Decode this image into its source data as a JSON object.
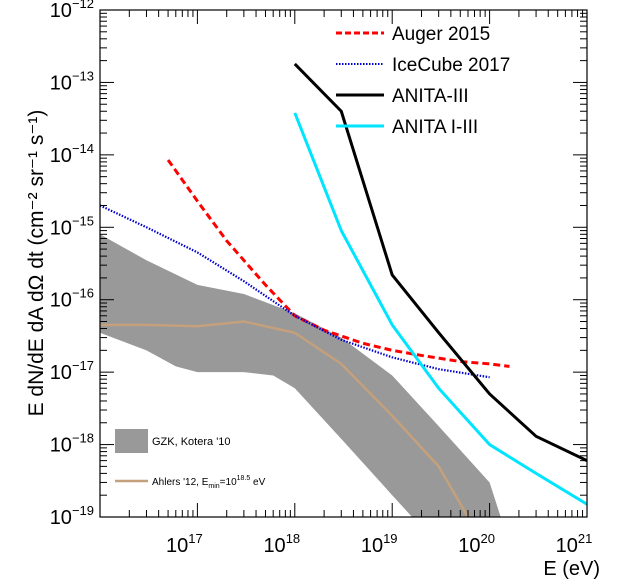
{
  "chart_data": {
    "type": "line",
    "title": "",
    "xlabel": "E (eV)",
    "ylabel": "E dN/dE dA dΩ dt (cm⁻² sr⁻¹ s⁻¹)",
    "x_scale": "log",
    "y_scale": "log",
    "xlim": [
      1e+16,
      1e+21
    ],
    "ylim": [
      1e-19,
      1e-12
    ],
    "x_tick_labels": [
      {
        "base": "10",
        "exp": "17",
        "value": 1e+17
      },
      {
        "base": "10",
        "exp": "18",
        "value": 1e+18
      },
      {
        "base": "10",
        "exp": "19",
        "value": 1e+19
      },
      {
        "base": "10",
        "exp": "20",
        "value": 1e+20
      },
      {
        "base": "10",
        "exp": "21",
        "value": 1e+21
      }
    ],
    "y_tick_labels": [
      {
        "base": "10",
        "exp": "−19",
        "value": 1e-19
      },
      {
        "base": "10",
        "exp": "−18",
        "value": 1e-18
      },
      {
        "base": "10",
        "exp": "−17",
        "value": 1e-17
      },
      {
        "base": "10",
        "exp": "−16",
        "value": 1e-16
      },
      {
        "base": "10",
        "exp": "−15",
        "value": 1e-15
      },
      {
        "base": "10",
        "exp": "−14",
        "value": 1e-14
      },
      {
        "base": "10",
        "exp": "−13",
        "value": 1e-13
      },
      {
        "base": "10",
        "exp": "−12",
        "value": 1e-12
      }
    ],
    "legend_top": {
      "placement": "top-right",
      "entries": [
        "Auger 2015",
        "IceCube 2017",
        "ANITA-III",
        "ANITA I-III"
      ]
    },
    "legend_bottom": {
      "placement": "bottom-left",
      "gzk_label": "GZK, Kotera '10",
      "ahlers_label_prefix": "Ahlers '12, E",
      "ahlers_label_sub": "min",
      "ahlers_label_mid": "=10",
      "ahlers_label_sup": "18.5",
      "ahlers_label_suffix": " eV"
    },
    "series": [
      {
        "name": "Auger 2015",
        "color": "#ff0000",
        "style": "dashed",
        "points": [
          [
            5e+16,
            8.5e-15
          ],
          [
            1e+17,
            2.3e-15
          ],
          [
            2e+17,
            6.5e-16
          ],
          [
            5e+17,
            1.6e-16
          ],
          [
            1e+18,
            6e-17
          ],
          [
            2e+18,
            3.8e-17
          ],
          [
            5e+18,
            2.5e-17
          ],
          [
            1e+19,
            2e-17
          ],
          [
            2e+19,
            1.7e-17
          ],
          [
            5e+19,
            1.4e-17
          ],
          [
            1e+20,
            1.3e-17
          ],
          [
            1.6e+20,
            1.2e-17
          ]
        ]
      },
      {
        "name": "IceCube 2017",
        "color": "#0000cc",
        "style": "dotted",
        "points": [
          [
            1e+16,
            2e-15
          ],
          [
            3e+16,
            1e-15
          ],
          [
            1e+17,
            4.5e-16
          ],
          [
            3e+17,
            1.8e-16
          ],
          [
            1e+18,
            6e-17
          ],
          [
            3e+18,
            2.8e-17
          ],
          [
            1e+19,
            1.6e-17
          ],
          [
            3e+19,
            1.1e-17
          ],
          [
            1e+20,
            8.5e-18
          ]
        ]
      },
      {
        "name": "ANITA-III",
        "color": "#000000",
        "style": "solid",
        "points": [
          [
            1e+18,
            1.8e-13
          ],
          [
            3e+18,
            4e-14
          ],
          [
            1e+19,
            2.2e-16
          ],
          [
            3e+19,
            3.5e-17
          ],
          [
            1e+20,
            5e-18
          ],
          [
            3e+20,
            1.3e-18
          ],
          [
            1e+21,
            6e-19
          ]
        ]
      },
      {
        "name": "ANITA I-III",
        "color": "#00e5ff",
        "style": "solid",
        "points": [
          [
            1e+18,
            3.8e-14
          ],
          [
            3e+18,
            9e-16
          ],
          [
            1e+19,
            4.5e-17
          ],
          [
            3e+19,
            6e-18
          ],
          [
            1e+20,
            1e-18
          ],
          [
            3e+20,
            4e-19
          ],
          [
            1e+21,
            1.5e-19
          ]
        ]
      },
      {
        "name": "Ahlers '12",
        "color": "#c4a07c",
        "style": "solid",
        "points": [
          [
            1e+16,
            4.5e-17
          ],
          [
            3e+16,
            4.5e-17
          ],
          [
            1e+17,
            4.3e-17
          ],
          [
            3e+17,
            5e-17
          ],
          [
            1e+18,
            3.5e-17
          ],
          [
            3e+18,
            1.3e-17
          ],
          [
            1e+19,
            2.5e-18
          ],
          [
            3e+19,
            5e-19
          ],
          [
            6e+19,
            1e-19
          ]
        ]
      }
    ],
    "band": {
      "name": "GZK, Kotera '10",
      "color": "#999999",
      "upper": [
        [
          1e+16,
          8e-16
        ],
        [
          3e+16,
          3.5e-16
        ],
        [
          1e+17,
          1.6e-16
        ],
        [
          3e+17,
          1.2e-16
        ],
        [
          1e+18,
          6.5e-17
        ],
        [
          3e+18,
          3e-17
        ],
        [
          1e+19,
          9e-18
        ],
        [
          3e+19,
          1.8e-18
        ],
        [
          1e+20,
          3e-19
        ],
        [
          1.3e+20,
          1e-19
        ]
      ],
      "lower": [
        [
          1e+16,
          3.5e-17
        ],
        [
          3e+16,
          2e-17
        ],
        [
          6e+16,
          1.2e-17
        ],
        [
          1e+17,
          1e-17
        ],
        [
          3e+17,
          1e-17
        ],
        [
          6e+17,
          9e-18
        ],
        [
          1e+18,
          6e-18
        ],
        [
          3e+18,
          1.2e-18
        ],
        [
          1e+19,
          2e-19
        ],
        [
          1.6e+19,
          1e-19
        ]
      ]
    }
  }
}
